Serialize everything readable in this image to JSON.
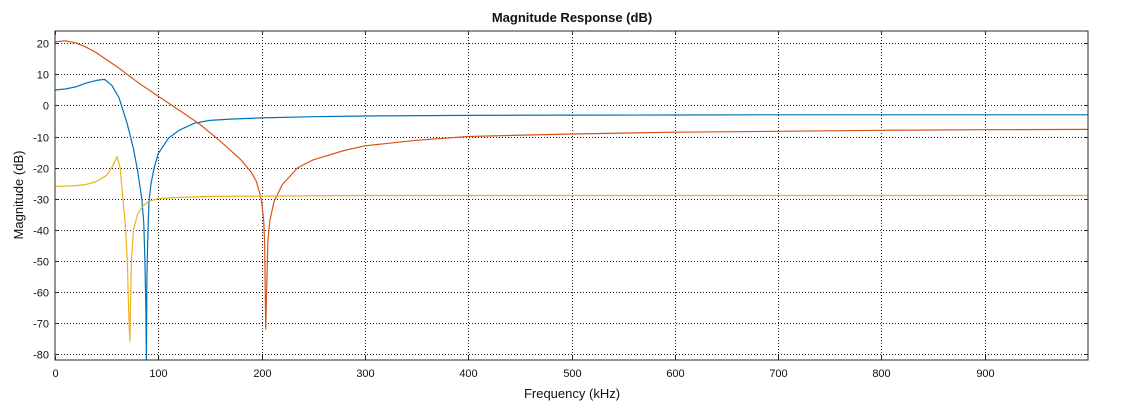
{
  "chart_data": {
    "type": "line",
    "title": "Magnitude Response (dB)",
    "xlabel": "Frequency (kHz)",
    "ylabel": "Magnitude (dB)",
    "xlim": [
      0,
      1000
    ],
    "ylim": [
      -82,
      24
    ],
    "xticks": [
      0,
      100,
      200,
      300,
      400,
      500,
      600,
      700,
      800,
      900
    ],
    "yticks": [
      20,
      10,
      0,
      -10,
      -20,
      -30,
      -40,
      -50,
      -60,
      -70,
      -80
    ],
    "grid": true,
    "series": [
      {
        "color": "#0072bd",
        "x": [
          0,
          10,
          20,
          30,
          40,
          48,
          55,
          62,
          70,
          76,
          80,
          84,
          86,
          87,
          88,
          88.5,
          89,
          90,
          91,
          93,
          96,
          100,
          110,
          120,
          135,
          150,
          170,
          200,
          250,
          300,
          400,
          500,
          600,
          700,
          800,
          900,
          1000
        ],
        "y": [
          5,
          5.3,
          6,
          7.2,
          8.1,
          8.4,
          6.5,
          2.5,
          -6,
          -14,
          -21,
          -30,
          -38,
          -50,
          -66,
          -82,
          -55,
          -40,
          -31,
          -25,
          -20,
          -15.5,
          -10.5,
          -8,
          -5.7,
          -4.8,
          -4.4,
          -4,
          -3.6,
          -3.4,
          -3.2,
          -3.1,
          -3.05,
          -3,
          -3,
          -3,
          -3
        ]
      },
      {
        "color": "#d95319",
        "x": [
          0,
          10,
          20,
          30,
          40,
          60,
          80,
          100,
          120,
          140,
          160,
          180,
          190,
          195,
          198,
          200,
          202,
          203,
          204,
          205,
          206,
          208,
          212,
          220,
          235,
          250,
          280,
          300,
          350,
          400,
          500,
          600,
          700,
          800,
          900,
          1000
        ],
        "y": [
          20.5,
          20.8,
          20.2,
          18.8,
          17,
          12.5,
          7.5,
          3,
          -1.5,
          -6,
          -11.5,
          -17.5,
          -21.5,
          -24.5,
          -28,
          -31,
          -37,
          -45,
          -72,
          -58,
          -44,
          -37,
          -31,
          -25.5,
          -20,
          -17.5,
          -14.5,
          -13,
          -11.2,
          -10,
          -9.2,
          -8.6,
          -8.3,
          -8,
          -7.8,
          -7.7
        ]
      },
      {
        "color": "#edb120",
        "x": [
          0,
          10,
          20,
          30,
          40,
          50,
          55,
          60,
          63,
          65,
          68,
          70,
          71,
          72,
          72.5,
          73,
          74,
          76,
          80,
          85,
          90,
          100,
          120,
          150,
          200,
          300,
          400,
          500,
          600,
          700,
          800,
          900,
          1000
        ],
        "y": [
          -26,
          -26,
          -25.8,
          -25.5,
          -24.5,
          -22.5,
          -20,
          -16.5,
          -20,
          -27,
          -38,
          -50,
          -62,
          -73,
          -76,
          -65,
          -50,
          -40,
          -35,
          -32.5,
          -31,
          -30,
          -29.6,
          -29.3,
          -29.2,
          -29,
          -29,
          -29,
          -29,
          -29,
          -29,
          -29,
          -29
        ]
      }
    ]
  }
}
